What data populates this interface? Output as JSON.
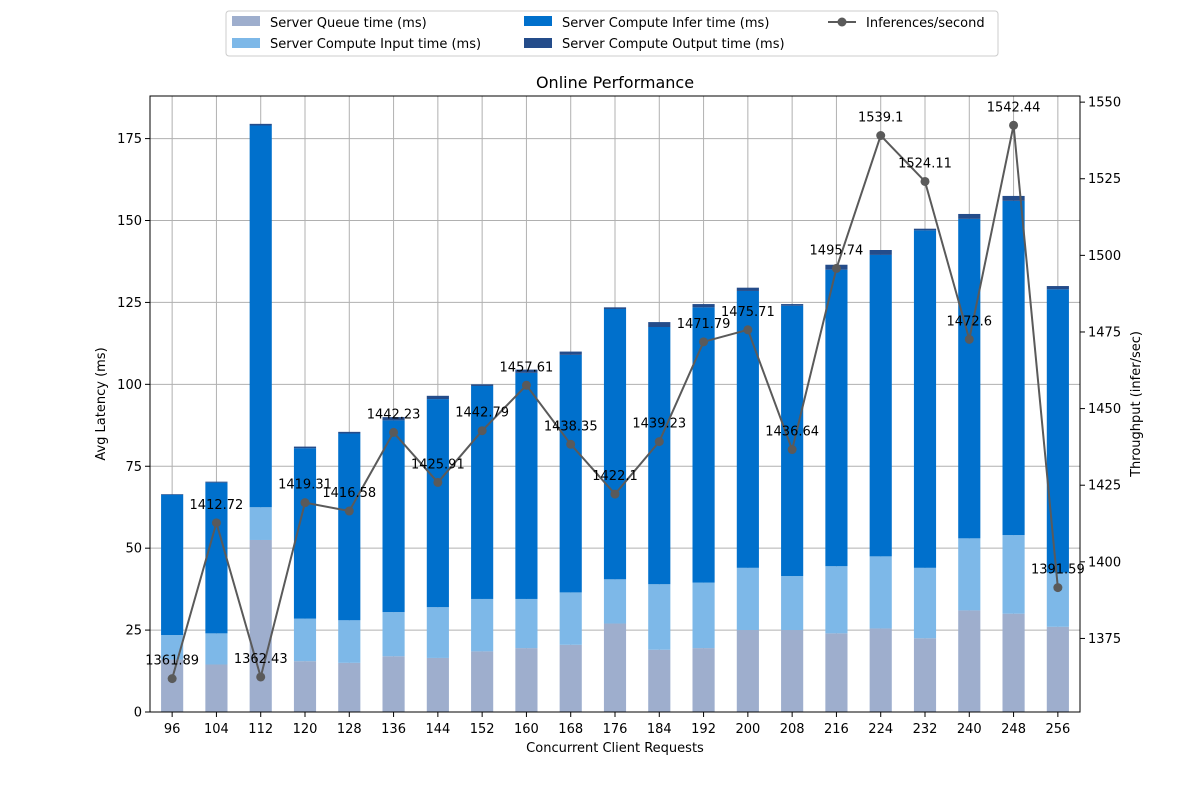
{
  "chart_data": {
    "type": "bar",
    "title": "Online Performance",
    "xlabel": "Concurrent Client Requests",
    "ylabel": "Avg Latency (ms)",
    "y2label": "Throughput (infer/sec)",
    "ylim": [
      0,
      188
    ],
    "y2lim": [
      1351,
      1552
    ],
    "yticks": [
      0,
      25,
      50,
      75,
      100,
      125,
      150,
      175
    ],
    "y2ticks": [
      1375,
      1400,
      1425,
      1450,
      1475,
      1500,
      1525,
      1550
    ],
    "grid": true,
    "legend_position": "top-center",
    "categories": [
      "96",
      "104",
      "112",
      "120",
      "128",
      "136",
      "144",
      "152",
      "160",
      "168",
      "176",
      "184",
      "192",
      "200",
      "208",
      "216",
      "224",
      "232",
      "240",
      "248",
      "256"
    ],
    "series": [
      {
        "name": "Server Queue time (ms)",
        "color": "#9eaecd",
        "values": [
          16,
          14.5,
          52.5,
          15.5,
          15,
          17,
          16.5,
          18.5,
          19.5,
          20.5,
          27,
          19,
          19.5,
          25,
          25,
          24,
          25.5,
          22.5,
          31,
          30,
          26
        ]
      },
      {
        "name": "Server Compute Input time (ms)",
        "color": "#7db8e8",
        "values": [
          7.5,
          9.5,
          10,
          13,
          13,
          13.5,
          15.5,
          16,
          15,
          16,
          13.5,
          20,
          20,
          19,
          16.5,
          20.5,
          22,
          21.5,
          22,
          24,
          16.5
        ]
      },
      {
        "name": "Server Compute Infer time (ms)",
        "color": "#0070cc",
        "values": [
          42.8,
          46,
          116.5,
          52,
          57,
          58.5,
          63.5,
          65,
          69,
          72.5,
          82.5,
          78.5,
          84,
          84.5,
          82.5,
          90.5,
          92,
          103,
          97.5,
          102,
          86.5
        ]
      },
      {
        "name": "Server Compute Output time (ms)",
        "color": "#244c8a",
        "values": [
          0.2,
          0.3,
          0.5,
          0.5,
          0.5,
          1,
          1,
          0.5,
          1,
          1,
          0.5,
          1.5,
          1,
          1,
          0.5,
          1.5,
          1.5,
          0.5,
          1.5,
          1.5,
          1
        ]
      }
    ],
    "line_series": {
      "name": "Inferences/second",
      "color": "#5a5a5a",
      "values": [
        1361.89,
        1412.72,
        1362.43,
        1419.31,
        1416.58,
        1442.23,
        1425.91,
        1442.79,
        1457.61,
        1438.35,
        1422.1,
        1439.23,
        1471.79,
        1475.71,
        1436.64,
        1495.74,
        1539.1,
        1524.11,
        1472.6,
        1542.44,
        1391.59
      ],
      "labels": [
        "1361.89",
        "1412.72",
        "1362.43",
        "1419.31",
        "1416.58",
        "1442.23",
        "1425.91",
        "1442.79",
        "1457.61",
        "1438.35",
        "1422.1",
        "1439.23",
        "1471.79",
        "1475.71",
        "1436.64",
        "1495.74",
        "1539.1",
        "1524.11",
        "1472.6",
        "1542.44",
        "1391.59"
      ]
    }
  }
}
